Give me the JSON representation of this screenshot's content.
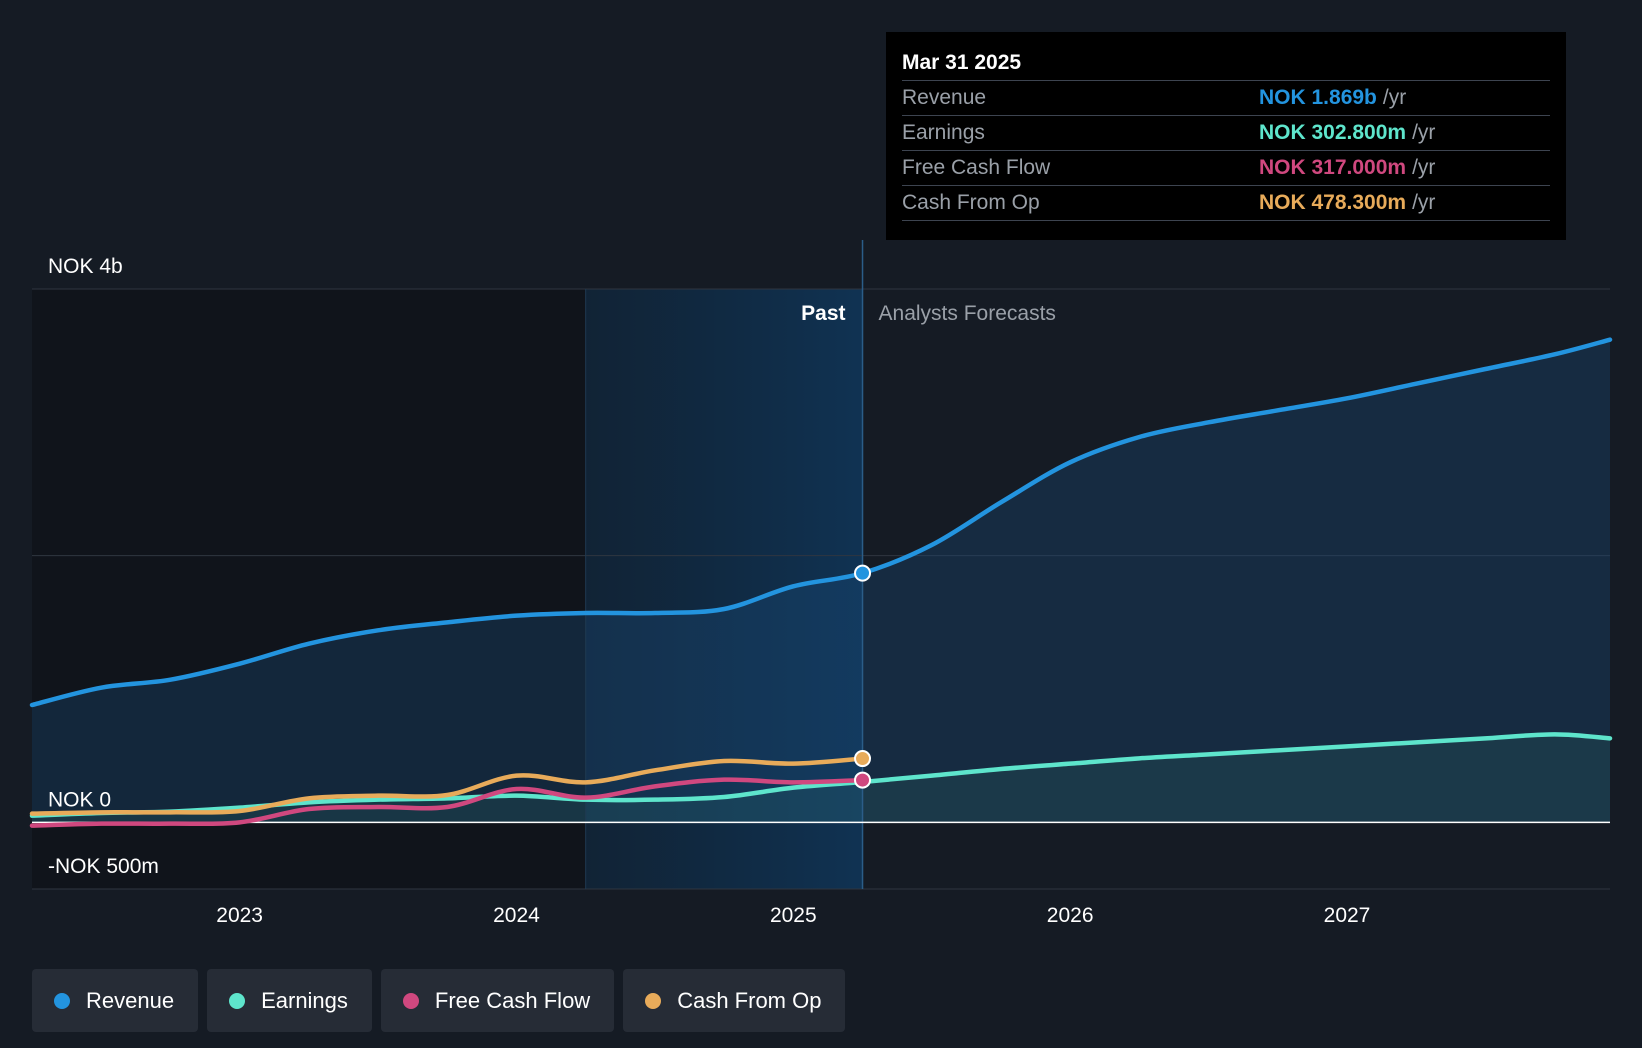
{
  "chart_data": {
    "type": "area",
    "y_axis_labels": [
      "NOK 4b",
      "NOK 0",
      "-NOK 500m"
    ],
    "ylim": [
      -500,
      4000
    ],
    "units": "NOK m",
    "x_ticks": [
      "2023",
      "2024",
      "2025",
      "2026",
      "2027"
    ],
    "xlim": [
      2022.25,
      2027.95
    ],
    "past_label": "Past",
    "forecast_label": "Analysts Forecasts",
    "divider_x": 2025.25,
    "highlight_start_x": 2024.25,
    "series": [
      {
        "name": "Revenue",
        "color": "#2394df",
        "x": [
          2022.25,
          2022.5,
          2022.75,
          2023.0,
          2023.25,
          2023.5,
          2023.75,
          2024.0,
          2024.25,
          2024.5,
          2024.75,
          2025.0,
          2025.25,
          2025.5,
          2025.75,
          2026.0,
          2026.25,
          2026.5,
          2026.75,
          2027.0,
          2027.25,
          2027.5,
          2027.75,
          2027.95
        ],
        "values": [
          880,
          1010,
          1070,
          1190,
          1340,
          1440,
          1500,
          1550,
          1570,
          1570,
          1600,
          1770,
          1869,
          2080,
          2400,
          2700,
          2890,
          3000,
          3090,
          3180,
          3290,
          3400,
          3510,
          3620
        ]
      },
      {
        "name": "Earnings",
        "color": "#5ee5cc",
        "x": [
          2022.25,
          2022.5,
          2022.75,
          2023.0,
          2023.25,
          2023.5,
          2023.75,
          2024.0,
          2024.25,
          2024.5,
          2024.75,
          2025.0,
          2025.25,
          2025.5,
          2025.75,
          2026.0,
          2026.25,
          2026.5,
          2026.75,
          2027.0,
          2027.25,
          2027.5,
          2027.75,
          2027.95
        ],
        "values": [
          50,
          70,
          80,
          110,
          150,
          170,
          180,
          200,
          170,
          170,
          190,
          260,
          302.8,
          350,
          400,
          440,
          480,
          510,
          540,
          570,
          600,
          630,
          660,
          630
        ]
      },
      {
        "name": "Free Cash Flow",
        "color": "#d0487f",
        "x": [
          2022.25,
          2022.5,
          2022.75,
          2023.0,
          2023.25,
          2023.5,
          2023.75,
          2024.0,
          2024.25,
          2024.5,
          2024.75,
          2025.0,
          2025.25
        ],
        "values": [
          -25,
          -10,
          -10,
          0,
          100,
          115,
          115,
          250,
          185,
          270,
          320,
          300,
          317
        ]
      },
      {
        "name": "Cash From Op",
        "color": "#e8ab5a",
        "x": [
          2022.25,
          2022.5,
          2022.75,
          2023.0,
          2023.25,
          2023.5,
          2023.75,
          2024.0,
          2024.25,
          2024.5,
          2024.75,
          2025.0,
          2025.25
        ],
        "values": [
          65,
          75,
          75,
          85,
          180,
          200,
          205,
          350,
          300,
          390,
          460,
          440,
          478.3
        ]
      }
    ]
  },
  "tooltip": {
    "date": "Mar 31 2025",
    "rows": [
      {
        "label": "Revenue",
        "value": "NOK 1.869b",
        "unit": "/yr",
        "color": "#2394df"
      },
      {
        "label": "Earnings",
        "value": "NOK 302.800m",
        "unit": "/yr",
        "color": "#5ee5cc"
      },
      {
        "label": "Free Cash Flow",
        "value": "NOK 317.000m",
        "unit": "/yr",
        "color": "#d0487f"
      },
      {
        "label": "Cash From Op",
        "value": "NOK 478.300m",
        "unit": "/yr",
        "color": "#e8ab5a"
      }
    ]
  },
  "legend": [
    {
      "label": "Revenue",
      "color": "#2394df"
    },
    {
      "label": "Earnings",
      "color": "#5ee5cc"
    },
    {
      "label": "Free Cash Flow",
      "color": "#d0487f"
    },
    {
      "label": "Cash From Op",
      "color": "#e8ab5a"
    }
  ]
}
